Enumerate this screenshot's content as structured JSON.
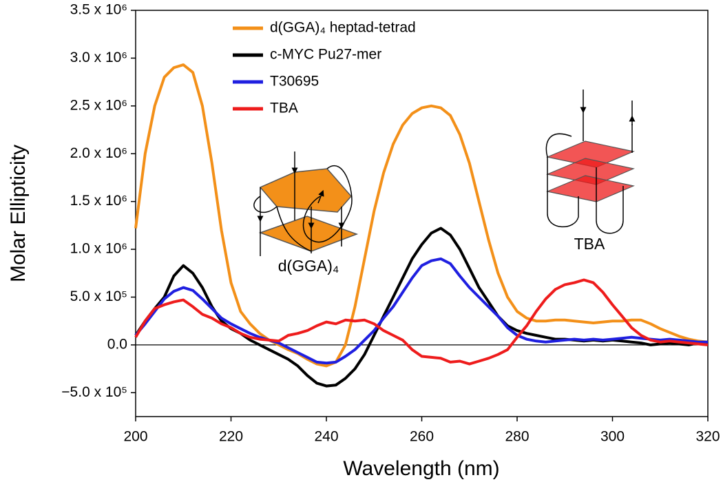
{
  "chart_data": {
    "type": "line",
    "x_label": "Wavelength (nm)",
    "y_label": "Molar Ellipticity",
    "x": [
      200,
      202,
      204,
      206,
      208,
      210,
      212,
      214,
      216,
      218,
      220,
      222,
      224,
      226,
      228,
      230,
      232,
      234,
      236,
      238,
      240,
      242,
      244,
      246,
      248,
      250,
      252,
      254,
      256,
      258,
      260,
      262,
      264,
      266,
      268,
      270,
      272,
      274,
      276,
      278,
      280,
      282,
      284,
      286,
      288,
      290,
      292,
      294,
      296,
      298,
      300,
      302,
      304,
      306,
      308,
      310,
      312,
      314,
      316,
      318,
      320
    ],
    "series": [
      {
        "name": "d(GGA)₄ heptad-tetrad",
        "color": "#f39019",
        "values": [
          1220000,
          2000000,
          2500000,
          2800000,
          2900000,
          2930000,
          2850000,
          2500000,
          1900000,
          1200000,
          650000,
          350000,
          220000,
          120000,
          50000,
          0,
          -50000,
          -90000,
          -150000,
          -200000,
          -220000,
          -180000,
          0,
          400000,
          900000,
          1400000,
          1800000,
          2100000,
          2300000,
          2420000,
          2480000,
          2500000,
          2480000,
          2400000,
          2200000,
          1900000,
          1500000,
          1100000,
          750000,
          500000,
          350000,
          280000,
          250000,
          250000,
          260000,
          260000,
          250000,
          240000,
          230000,
          240000,
          250000,
          250000,
          260000,
          260000,
          220000,
          170000,
          130000,
          90000,
          60000,
          40000,
          30000
        ]
      },
      {
        "name": "c-MYC Pu27-mer",
        "color": "#000000",
        "values": [
          100000,
          250000,
          380000,
          500000,
          720000,
          830000,
          750000,
          600000,
          400000,
          250000,
          170000,
          120000,
          50000,
          0,
          -50000,
          -100000,
          -150000,
          -220000,
          -320000,
          -400000,
          -430000,
          -420000,
          -350000,
          -250000,
          -100000,
          100000,
          300000,
          500000,
          700000,
          900000,
          1050000,
          1170000,
          1220000,
          1150000,
          1000000,
          800000,
          600000,
          450000,
          300000,
          200000,
          150000,
          120000,
          100000,
          80000,
          60000,
          60000,
          50000,
          40000,
          50000,
          40000,
          50000,
          40000,
          30000,
          20000,
          0,
          10000,
          20000,
          10000,
          0,
          20000,
          30000
        ]
      },
      {
        "name": "T30695",
        "color": "#1f1fe0",
        "values": [
          100000,
          220000,
          350000,
          480000,
          560000,
          600000,
          570000,
          480000,
          380000,
          280000,
          220000,
          170000,
          120000,
          80000,
          50000,
          20000,
          -30000,
          -80000,
          -130000,
          -180000,
          -190000,
          -180000,
          -120000,
          -50000,
          50000,
          150000,
          280000,
          400000,
          550000,
          700000,
          830000,
          880000,
          900000,
          850000,
          720000,
          600000,
          500000,
          400000,
          300000,
          180000,
          100000,
          60000,
          40000,
          30000,
          40000,
          50000,
          60000,
          50000,
          60000,
          50000,
          60000,
          70000,
          80000,
          70000,
          60000,
          50000,
          60000,
          50000,
          40000,
          30000,
          30000
        ]
      },
      {
        "name": "TBA",
        "color": "#ee1c1c",
        "values": [
          80000,
          250000,
          380000,
          420000,
          450000,
          470000,
          400000,
          320000,
          280000,
          220000,
          180000,
          120000,
          80000,
          60000,
          50000,
          40000,
          100000,
          120000,
          150000,
          200000,
          240000,
          220000,
          260000,
          250000,
          260000,
          220000,
          150000,
          100000,
          50000,
          -50000,
          -120000,
          -130000,
          -140000,
          -180000,
          -170000,
          -200000,
          -170000,
          -140000,
          -100000,
          -50000,
          80000,
          200000,
          350000,
          480000,
          580000,
          630000,
          650000,
          680000,
          650000,
          550000,
          420000,
          300000,
          180000,
          100000,
          50000,
          30000,
          40000,
          30000,
          20000,
          10000,
          0
        ]
      }
    ],
    "xlim": [
      200,
      320
    ],
    "xticks": [
      200,
      220,
      240,
      260,
      280,
      300,
      320
    ],
    "ylim": [
      -750000,
      3500000
    ],
    "yticks": [
      {
        "value": -500000,
        "label": "−5.0 x 10⁵"
      },
      {
        "value": 0,
        "label": "0.0"
      },
      {
        "value": 500000,
        "label": "5.0 x 10⁵"
      },
      {
        "value": 1000000,
        "label": "1.0 x 10⁶"
      },
      {
        "value": 1500000,
        "label": "1.5 x 10⁶"
      },
      {
        "value": 2000000,
        "label": "2.0 x 10⁶"
      },
      {
        "value": 2500000,
        "label": "2.5 x 10⁶"
      },
      {
        "value": 3000000,
        "label": "3.0 x 10⁶"
      },
      {
        "value": 3500000,
        "label": "3.5 x 10⁶"
      }
    ],
    "zero_line": true,
    "annotations": [
      "d(GGA)₄",
      "TBA"
    ]
  }
}
